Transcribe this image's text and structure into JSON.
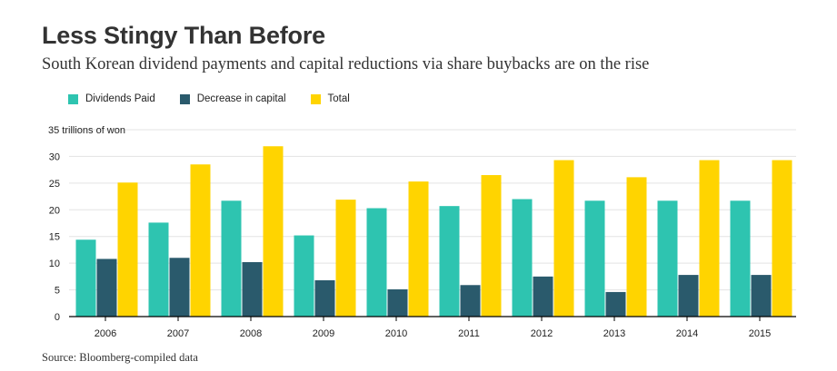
{
  "title": "Less Stingy Than Before",
  "subtitle": "South Korean dividend payments and capital reductions via share buybacks are on the rise",
  "source": "Source: Bloomberg-compiled data",
  "colors": {
    "dividends": "#2ec4b0",
    "decrease": "#2a5a6c",
    "total": "#ffd400",
    "grid": "#e3e3e3",
    "axis": "#000000"
  },
  "chart_data": {
    "type": "bar",
    "title": "Less Stingy Than Before",
    "subtitle": "South Korean dividend payments and capital reductions via share buybacks are on the rise",
    "ylabel": "35 trillions of won",
    "ylim": [
      0,
      35
    ],
    "yticks": [
      "0",
      "5",
      "10",
      "15",
      "20",
      "25",
      "30"
    ],
    "grid": true,
    "legend_position": "top-left",
    "categories": [
      "2006",
      "2007",
      "2008",
      "2009",
      "2010",
      "2011",
      "2012",
      "2013",
      "2014",
      "2015"
    ],
    "series": [
      {
        "name": "Dividends Paid",
        "color": "#2ec4b0",
        "values": [
          14.4,
          17.6,
          21.7,
          15.2,
          20.3,
          20.7,
          22.0,
          21.7,
          21.7,
          21.7
        ]
      },
      {
        "name": "Decrease in capital",
        "color": "#2a5a6c",
        "values": [
          10.8,
          11.0,
          10.2,
          6.8,
          5.1,
          5.9,
          7.5,
          4.6,
          7.8,
          7.8
        ]
      },
      {
        "name": "Total",
        "color": "#ffd400",
        "values": [
          25.1,
          28.5,
          31.9,
          21.9,
          25.3,
          26.5,
          29.3,
          26.1,
          29.3,
          29.3
        ]
      }
    ]
  }
}
